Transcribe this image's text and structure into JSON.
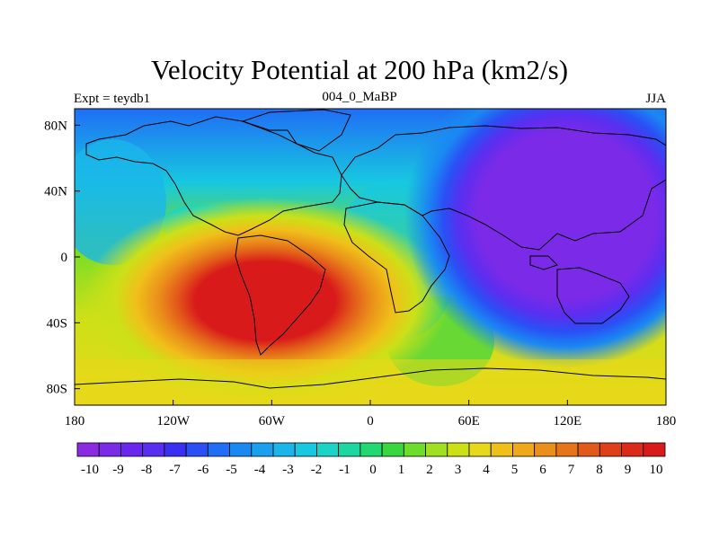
{
  "title": "Velocity Potential at 200 hPa (km2/s)",
  "subtitle_left": "Expt = teydb1",
  "subtitle_center": "004_0_MaBP",
  "subtitle_right": "JJA",
  "map": {
    "lon_range": [
      -180,
      180
    ],
    "lat_range": [
      -90,
      90
    ],
    "x_ticks": [
      {
        "lon": -180,
        "label": "180"
      },
      {
        "lon": -120,
        "label": "120W"
      },
      {
        "lon": -60,
        "label": "60W"
      },
      {
        "lon": 0,
        "label": "0"
      },
      {
        "lon": 60,
        "label": "60E"
      },
      {
        "lon": 120,
        "label": "120E"
      },
      {
        "lon": 180,
        "label": "180"
      }
    ],
    "y_ticks": [
      {
        "lat": 80,
        "label": "80N"
      },
      {
        "lat": 40,
        "label": "40N"
      },
      {
        "lat": 0,
        "label": "0"
      },
      {
        "lat": -40,
        "label": "40S"
      },
      {
        "lat": -80,
        "label": "80S"
      }
    ],
    "field_centers": [
      {
        "name": "maximum",
        "lon": -65,
        "lat": -25,
        "value": 10
      },
      {
        "name": "minimum",
        "lon": 110,
        "lat": 25,
        "value": -10
      }
    ]
  },
  "colorbar": {
    "colors": [
      "#8a2be2",
      "#7b2ae8",
      "#6a26ec",
      "#5a2ef0",
      "#3b2ff2",
      "#2a4ff5",
      "#1f6ef5",
      "#1a88f2",
      "#1aa0ef",
      "#1ab6ea",
      "#18c8e0",
      "#1ad4c8",
      "#1cd8a0",
      "#22d870",
      "#3ad640",
      "#6edc2a",
      "#a0e020",
      "#cce018",
      "#e8d81a",
      "#f0c01a",
      "#eea81a",
      "#ea901a",
      "#e6741a",
      "#e25a1a",
      "#de401a",
      "#dc2a1a",
      "#d81a1a"
    ],
    "labels": [
      "-10",
      "-9",
      "-8",
      "-7",
      "-6",
      "-5",
      "-4",
      "-3",
      "-2",
      "-1",
      "0",
      "1",
      "2",
      "3",
      "4",
      "5",
      "6",
      "7",
      "8",
      "9",
      "10"
    ]
  }
}
